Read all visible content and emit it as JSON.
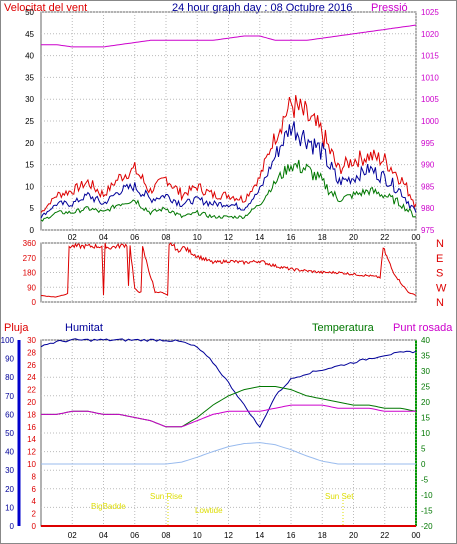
{
  "header": {
    "title": "24 hour graph day : 08 Octubre 2016",
    "left_label": "Velocitat del vent",
    "right_label": "Pressió"
  },
  "colors": {
    "red": "#dd0000",
    "blue": "#000099",
    "green": "#007700",
    "magenta": "#cc00cc",
    "lightblue": "#99bbee",
    "yellow": "#dddd00",
    "grid": "#bbbbbb",
    "border": "#666666"
  },
  "chart_data": [
    {
      "type": "line",
      "name": "wind-pressure",
      "x_ticks": [
        "02",
        "04",
        "06",
        "08",
        "10",
        "12",
        "14",
        "16",
        "18",
        "20",
        "22",
        "00"
      ],
      "y_left": {
        "label": "Velocitat del vent",
        "lim": [
          0,
          50
        ],
        "ticks": [
          0,
          5,
          10,
          15,
          20,
          25,
          30,
          35,
          40,
          45,
          50
        ]
      },
      "y_right": {
        "label": "Pressió",
        "lim": [
          975,
          1025
        ],
        "ticks": [
          975,
          980,
          985,
          990,
          995,
          1000,
          1005,
          1010,
          1015,
          1020,
          1025
        ]
      },
      "x_hours": [
        0,
        1,
        2,
        3,
        4,
        5,
        6,
        7,
        8,
        9,
        10,
        11,
        12,
        13,
        14,
        15,
        16,
        17,
        18,
        19,
        20,
        21,
        22,
        23,
        24
      ],
      "series": [
        {
          "color": "red",
          "values": [
            4,
            8,
            9,
            11,
            8,
            12,
            14,
            9,
            12,
            8,
            10,
            8,
            8,
            7,
            12,
            22,
            29,
            26,
            22,
            14,
            16,
            17,
            16,
            12,
            6
          ]
        },
        {
          "color": "blue",
          "values": [
            3,
            6,
            6,
            8,
            6,
            9,
            10,
            7,
            8,
            6,
            7,
            6,
            6,
            5,
            9,
            17,
            24,
            21,
            18,
            11,
            12,
            14,
            12,
            9,
            4
          ]
        },
        {
          "color": "green",
          "values": [
            2,
            4,
            4,
            5,
            4,
            6,
            7,
            4,
            5,
            3,
            4,
            3,
            3,
            3,
            6,
            11,
            15,
            14,
            11,
            7,
            8,
            9,
            8,
            6,
            3
          ]
        },
        {
          "color": "magenta",
          "axis": "right",
          "values": [
            1017.5,
            1017.5,
            1017,
            1017,
            1017,
            1017.5,
            1018,
            1018.5,
            1018.5,
            1018.5,
            1018.5,
            1018.5,
            1019,
            1019.5,
            1019.5,
            1018.5,
            1018.5,
            1018.5,
            1019,
            1019.5,
            1020,
            1020.5,
            1021,
            1021.5,
            1022
          ]
        }
      ]
    },
    {
      "type": "line",
      "name": "wind-direction",
      "y_ticks": [
        0,
        90,
        180,
        270,
        360
      ],
      "direction_labels": [
        "N",
        "W",
        "S",
        "E",
        "N"
      ],
      "lim": [
        0,
        360
      ],
      "x_hours": [
        0,
        0.9,
        1.7,
        1.8,
        3.9,
        4,
        4.1,
        4.3,
        5.5,
        5.6,
        5.7,
        6,
        6.3,
        6.4,
        6.5,
        7.3,
        7.5,
        7.7,
        8.1,
        8.2,
        8.3,
        8.6,
        8.8,
        9,
        10,
        11,
        12,
        13,
        14,
        15,
        16,
        17,
        18,
        19,
        20,
        21,
        21.7,
        21.9,
        22.5,
        23,
        23.5,
        24
      ],
      "series": [
        {
          "color": "red",
          "values": [
            40,
            30,
            50,
            340,
            340,
            40,
            350,
            330,
            350,
            100,
            340,
            80,
            60,
            60,
            330,
            60,
            60,
            60,
            40,
            340,
            360,
            330,
            300,
            340,
            280,
            240,
            250,
            240,
            250,
            220,
            200,
            190,
            180,
            180,
            170,
            160,
            150,
            330,
            190,
            120,
            60,
            40
          ]
        }
      ]
    },
    {
      "type": "line",
      "name": "temp-humidity-rain",
      "legend": [
        "Pluja",
        "Humitat",
        "Temperatura",
        "Punt rosada"
      ],
      "y_humidity": {
        "label": "Humitat",
        "lim": [
          0,
          100
        ],
        "ticks": [
          0,
          10,
          20,
          30,
          40,
          50,
          60,
          70,
          80,
          90,
          100
        ]
      },
      "y_rain": {
        "label": "Pluja",
        "lim": [
          0,
          30
        ],
        "ticks": [
          0,
          2,
          4,
          6,
          8,
          10,
          12,
          14,
          16,
          18,
          20,
          22,
          24,
          26,
          28,
          30
        ]
      },
      "y_temp": {
        "lim": [
          -20,
          40
        ],
        "ticks": [
          -20,
          -15,
          -10,
          -5,
          0,
          5,
          10,
          15,
          20,
          25,
          30,
          35,
          40
        ]
      },
      "x_hours": [
        0,
        1,
        2,
        3,
        4,
        5,
        6,
        7,
        8,
        9,
        10,
        11,
        12,
        13,
        14,
        15,
        16,
        17,
        18,
        19,
        20,
        21,
        22,
        23,
        24
      ],
      "series": [
        {
          "color": "blue",
          "values": [
            97,
            99,
            100,
            100,
            100,
            100,
            100,
            100,
            100,
            99,
            96,
            88,
            77,
            65,
            53,
            70,
            79,
            82,
            84,
            86,
            88,
            90,
            92,
            93,
            94
          ]
        },
        {
          "color": "green",
          "values": [
            16,
            16,
            17,
            17,
            16,
            16,
            15,
            14,
            12,
            12,
            15,
            19,
            22,
            24,
            25,
            25,
            24,
            22,
            21,
            20,
            19,
            19,
            18,
            18,
            17
          ]
        },
        {
          "color": "magenta",
          "values": [
            16,
            16,
            17,
            17,
            16,
            16,
            15,
            14,
            12,
            12,
            14,
            16,
            17,
            17,
            17,
            18,
            19,
            19,
            19,
            18,
            18,
            18,
            17,
            17,
            17
          ]
        },
        {
          "color": "lightblue",
          "values": [
            0,
            0,
            0,
            0,
            0,
            0,
            0,
            0,
            0,
            0.6,
            2.2,
            4.0,
            5.6,
            6.6,
            6.9,
            6.2,
            4.6,
            2.6,
            0.9,
            0,
            0,
            0,
            0,
            0,
            0
          ]
        },
        {
          "color": "red",
          "axis": "rain",
          "values": [
            0,
            0,
            0,
            0,
            0,
            0,
            0,
            0,
            0,
            0,
            0,
            0,
            0,
            0,
            0,
            0,
            0,
            0,
            0,
            0,
            0,
            0,
            0,
            0,
            0
          ]
        }
      ],
      "annotations": [
        "BigBadde",
        "Sun Rise",
        "Lowtide",
        "Sun Set"
      ]
    }
  ]
}
